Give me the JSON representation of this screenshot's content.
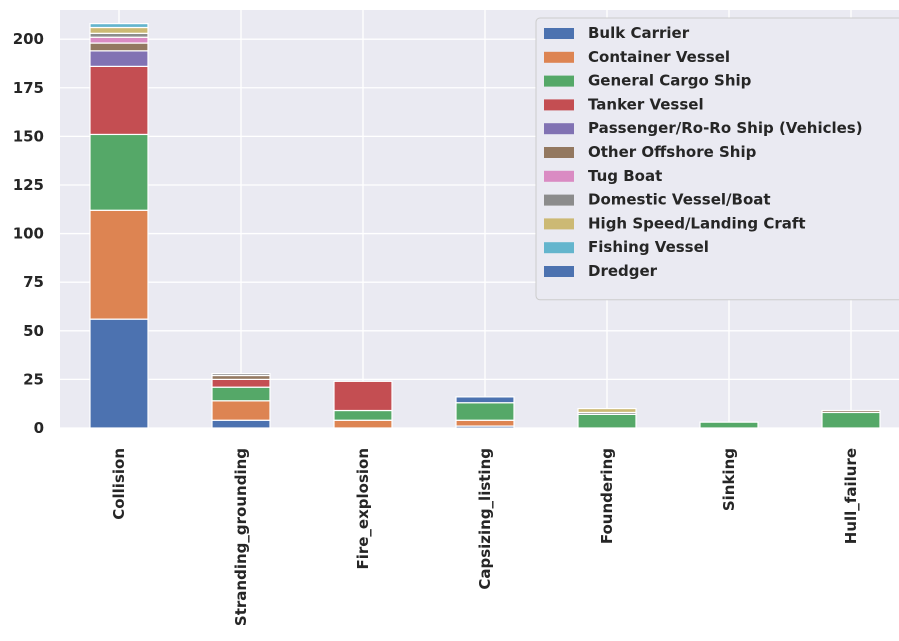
{
  "chart_data": {
    "type": "bar",
    "stacked": true,
    "categories": [
      "Collision",
      "Stranding_grounding",
      "Fire_explosion",
      "Capsizing_listing",
      "Foundering",
      "Sinking",
      "Hull_failure"
    ],
    "yticks": [
      "0",
      "25",
      "50",
      "75",
      "100",
      "125",
      "150",
      "175",
      "200"
    ],
    "ylim": [
      0,
      215
    ],
    "grid": true,
    "legend_position": "top-right",
    "series": [
      {
        "name": "Bulk Carrier",
        "color": "#4c72b0",
        "values": [
          56,
          4,
          0,
          1,
          0,
          0,
          0
        ]
      },
      {
        "name": "Container Vessel",
        "color": "#dd8452",
        "values": [
          56,
          10,
          4,
          3,
          0,
          0,
          0
        ]
      },
      {
        "name": "General Cargo Ship",
        "color": "#55a868",
        "values": [
          39,
          7,
          5,
          9,
          7,
          3,
          8
        ]
      },
      {
        "name": "Tanker Vessel",
        "color": "#c44e52",
        "values": [
          35,
          4,
          15,
          0,
          0,
          0,
          0
        ]
      },
      {
        "name": "Passenger/Ro-Ro Ship (Vehicles)",
        "color": "#8172b3",
        "values": [
          8,
          0,
          0,
          0,
          0,
          0,
          0
        ]
      },
      {
        "name": "Other Offshore Ship",
        "color": "#937860",
        "values": [
          4,
          2,
          0,
          0,
          0,
          0,
          1
        ]
      },
      {
        "name": "Tug Boat",
        "color": "#da8bc3",
        "values": [
          3,
          0,
          0,
          0,
          0,
          0,
          0
        ]
      },
      {
        "name": "Domestic Vessel/Boat",
        "color": "#8c8c8c",
        "values": [
          2,
          1,
          0,
          0,
          1,
          0,
          0
        ]
      },
      {
        "name": "High Speed/Landing Craft",
        "color": "#ccb974",
        "values": [
          3,
          0,
          0,
          0,
          2,
          0,
          0
        ]
      },
      {
        "name": "Fishing Vessel",
        "color": "#64b5cd",
        "values": [
          2,
          0,
          0,
          0,
          0,
          0,
          0
        ]
      },
      {
        "name": "Dredger",
        "color": "#4c72b0",
        "values": [
          0,
          0,
          0,
          3,
          0,
          0,
          0
        ]
      }
    ]
  }
}
